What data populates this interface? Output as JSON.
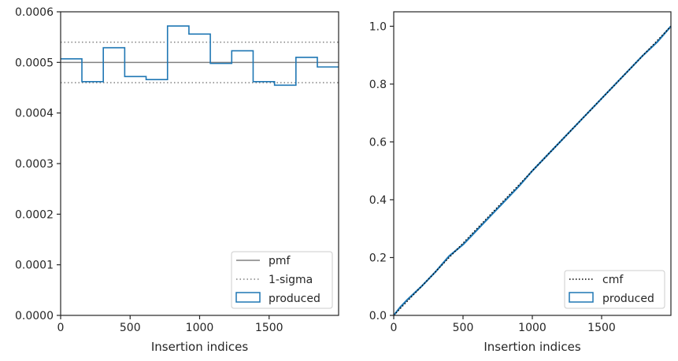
{
  "chart_data": [
    {
      "type": "histogram",
      "xlabel": "Insertion indices",
      "ylabel": "",
      "xlim": [
        0,
        2000
      ],
      "ylim": [
        0,
        0.0006
      ],
      "xticks": [
        "0",
        "500",
        "1000",
        "1500"
      ],
      "yticks": [
        "0.0000",
        "0.0001",
        "0.0002",
        "0.0003",
        "0.0004",
        "0.0005",
        "0.0006"
      ],
      "grid": false,
      "legend_position": "lower-right",
      "legend": [
        "pmf",
        "1-sigma",
        "produced"
      ],
      "pmf": 0.0005,
      "sigma_band": [
        0.00046,
        0.00054
      ],
      "series": [
        {
          "name": "produced",
          "bin_edges": [
            0,
            153,
            307,
            461,
            615,
            769,
            923,
            1077,
            1231,
            1385,
            1539,
            1693,
            1847,
            2000
          ],
          "values": [
            0.000507,
            0.000462,
            0.000529,
            0.000472,
            0.000466,
            0.000572,
            0.000556,
            0.000498,
            0.000523,
            0.000462,
            0.000455,
            0.00051,
            0.000491
          ]
        }
      ],
      "colors": {
        "pmf": "#808080",
        "sigma": "#808080",
        "produced": "#1f77b4"
      }
    },
    {
      "type": "line",
      "xlabel": "Insertion indices",
      "ylabel": "",
      "xlim": [
        0,
        2000
      ],
      "ylim": [
        0,
        1.05
      ],
      "xticks": [
        "0",
        "500",
        "1000",
        "1500"
      ],
      "yticks": [
        "0.0",
        "0.2",
        "0.4",
        "0.6",
        "0.8",
        "1.0"
      ],
      "grid": false,
      "legend_position": "lower-right",
      "legend": [
        "cmf",
        "produced"
      ],
      "series": [
        {
          "name": "cmf",
          "x": [
            0,
            2000
          ],
          "y": [
            0,
            1.0
          ]
        },
        {
          "name": "produced",
          "x": [
            0,
            50,
            100,
            200,
            300,
            400,
            500,
            600,
            700,
            800,
            900,
            1000,
            1100,
            1200,
            1300,
            1400,
            1500,
            1600,
            1700,
            1800,
            1900,
            2000
          ],
          "y": [
            0,
            0.03,
            0.055,
            0.1,
            0.15,
            0.205,
            0.245,
            0.295,
            0.345,
            0.395,
            0.445,
            0.5,
            0.55,
            0.6,
            0.65,
            0.7,
            0.75,
            0.8,
            0.85,
            0.9,
            0.945,
            1.0
          ]
        }
      ],
      "colors": {
        "cmf": "#000000",
        "produced": "#1f77b4"
      }
    }
  ]
}
